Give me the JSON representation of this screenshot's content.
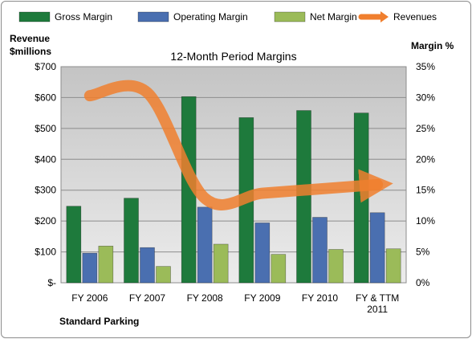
{
  "chart_data": {
    "type": "bar",
    "title": "12-Month Period Margins",
    "categories": [
      "FY 2006",
      "FY 2007",
      "FY 2008",
      "FY 2009",
      "FY 2010",
      "FY & TTM\n2011"
    ],
    "series": [
      {
        "name": "Gross Margin",
        "axis": "left",
        "color": "#1e7a3c",
        "values": [
          248,
          274,
          603,
          535,
          558,
          550
        ]
      },
      {
        "name": "Operating Margin",
        "axis": "left",
        "color": "#4a6fb0",
        "values": [
          96,
          114,
          245,
          194,
          212,
          227
        ]
      },
      {
        "name": "Net Margin",
        "axis": "left",
        "color": "#9bbb59",
        "values": [
          119,
          53,
          125,
          92,
          108,
          110
        ]
      },
      {
        "name": "Revenues",
        "axis": "right",
        "type": "line",
        "color": "#f07f2e",
        "values": [
          30.3,
          30.8,
          13.7,
          14.5,
          15.2,
          15.9
        ]
      }
    ],
    "y_left": {
      "label": "Revenue\n$millions",
      "ylim": [
        0,
        700
      ],
      "ticks": [
        0,
        100,
        200,
        300,
        400,
        500,
        600,
        700
      ],
      "tick_labels": [
        "$-",
        "$100",
        "$200",
        "$300",
        "$400",
        "$500",
        "$600",
        "$700"
      ]
    },
    "y_right": {
      "label": "Margin %",
      "ylim": [
        0,
        35
      ],
      "ticks": [
        0,
        5,
        10,
        15,
        20,
        25,
        30,
        35
      ],
      "tick_labels": [
        "0%",
        "5%",
        "10%",
        "15%",
        "20%",
        "25%",
        "30%",
        "35%"
      ]
    },
    "grid": true,
    "legend": "top",
    "footer": "Standard Parking"
  }
}
